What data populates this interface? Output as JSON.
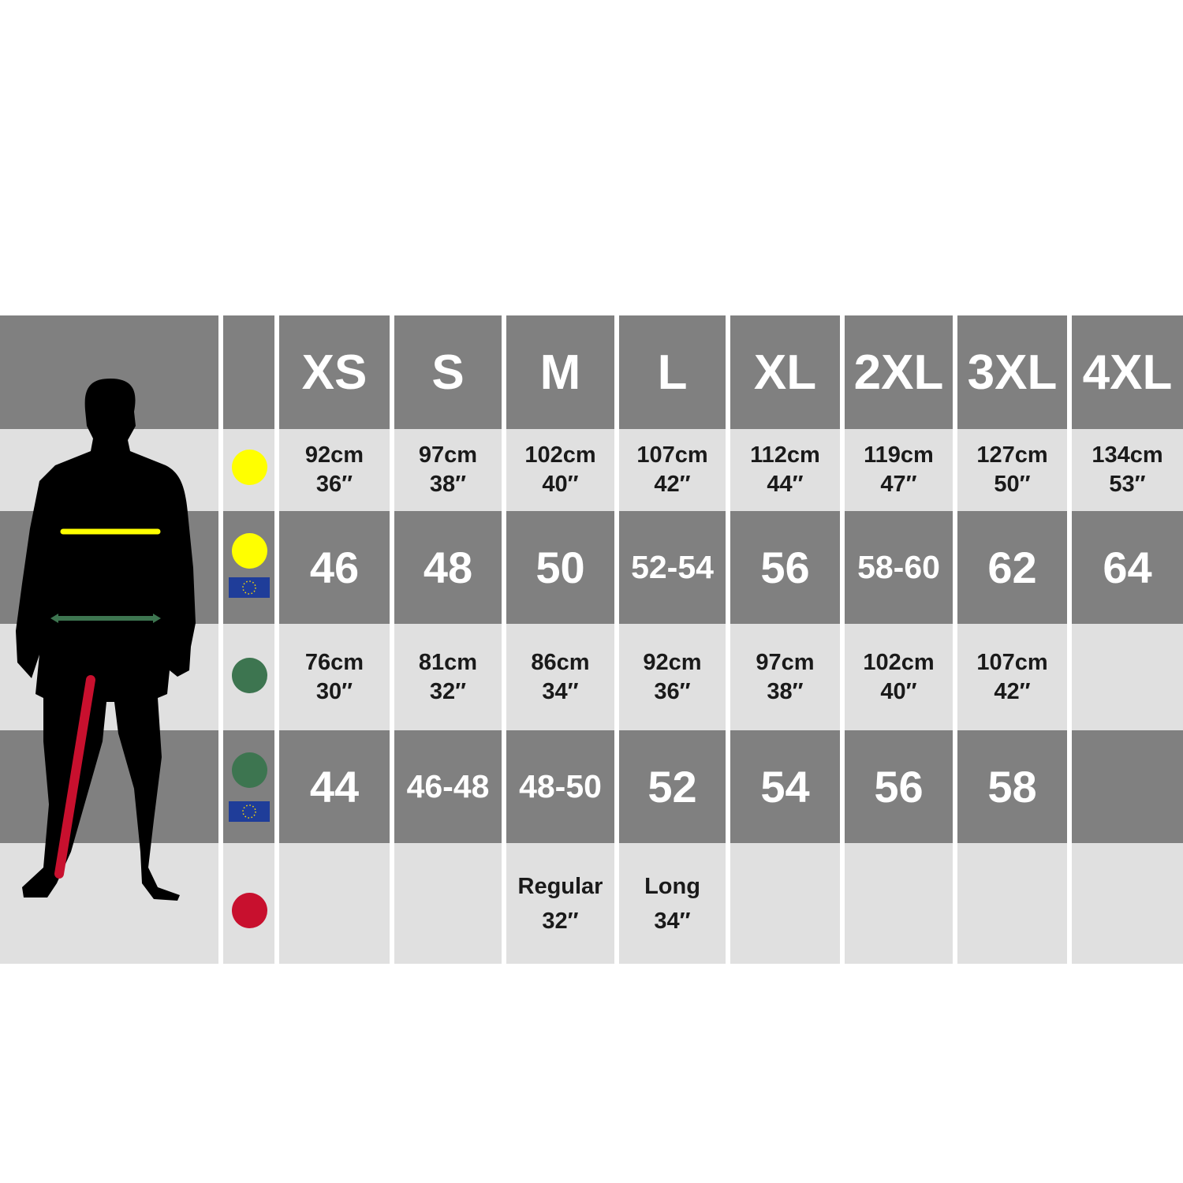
{
  "sizes": [
    "XS",
    "S",
    "M",
    "L",
    "XL",
    "2XL",
    "3XL",
    "4XL"
  ],
  "rows": {
    "chest": {
      "color": "#ffff00",
      "values": [
        [
          "92cm",
          "36″"
        ],
        [
          "97cm",
          "38″"
        ],
        [
          "102cm",
          "40″"
        ],
        [
          "107cm",
          "42″"
        ],
        [
          "112cm",
          "44″"
        ],
        [
          "119cm",
          "47″"
        ],
        [
          "127cm",
          "50″"
        ],
        [
          "134cm",
          "53″"
        ]
      ]
    },
    "chest_eu": {
      "color": "#ffff00",
      "flag": "eu-flag-icon",
      "values": [
        "46",
        "48",
        "50",
        "52-54",
        "56",
        "58-60",
        "62",
        "64"
      ]
    },
    "waist": {
      "color": "#3d7550",
      "values": [
        [
          "76cm",
          "30″"
        ],
        [
          "81cm",
          "32″"
        ],
        [
          "86cm",
          "34″"
        ],
        [
          "92cm",
          "36″"
        ],
        [
          "97cm",
          "38″"
        ],
        [
          "102cm",
          "40″"
        ],
        [
          "107cm",
          "42″"
        ],
        []
      ]
    },
    "waist_eu": {
      "color": "#3d7550",
      "flag": "eu-flag-icon",
      "values": [
        "44",
        "46-48",
        "48-50",
        "52",
        "54",
        "56",
        "58",
        ""
      ]
    },
    "inside_leg": {
      "color": "#c8102e",
      "values": [
        [],
        [],
        [
          "Regular",
          "32″"
        ],
        [
          "Long",
          "34″"
        ],
        [],
        [],
        [],
        []
      ]
    }
  },
  "colors": {
    "dark_band": "#808080",
    "light_band": "#e0e0e0",
    "eu_flag": "#1f3d99"
  }
}
